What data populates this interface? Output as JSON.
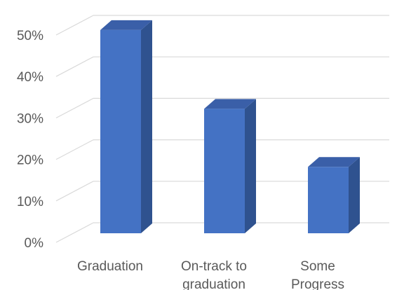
{
  "chart_data": {
    "type": "bar",
    "style": "3d-column",
    "categories": [
      "Graduation",
      "On-track to graduation",
      "Some Progress"
    ],
    "category_label_lines": [
      [
        "Graduation"
      ],
      [
        "On-track to",
        "graduation"
      ],
      [
        "Some",
        "Progress"
      ]
    ],
    "values": [
      49,
      30,
      16
    ],
    "y_ticks": [
      "0%",
      "10%",
      "20%",
      "30%",
      "40%",
      "50%"
    ],
    "ylim": [
      0,
      50
    ],
    "unit": "%",
    "grid": true,
    "legend": "none",
    "bar_front_color": "#4472C4",
    "bar_side_color": "#2F528F",
    "bar_top_color": "#3A5FA8",
    "grid_color": "#d9d9d9",
    "label_color": "#595959"
  }
}
